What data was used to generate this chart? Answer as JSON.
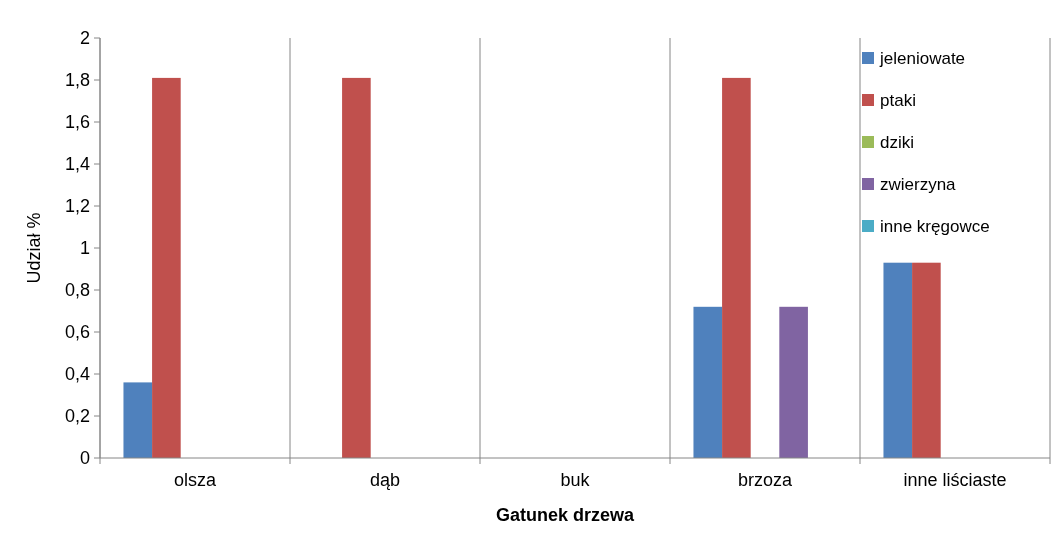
{
  "chart_data": {
    "type": "bar",
    "xlabel": "Gatunek drzewa",
    "ylabel": "Udział %",
    "categories": [
      "olsza",
      "dąb",
      "buk",
      "brzoza",
      "inne liściaste"
    ],
    "series": [
      {
        "name": "jeleniowate",
        "color": "#4f81bd",
        "values": [
          0.36,
          0,
          0,
          0.72,
          0.93
        ]
      },
      {
        "name": "ptaki",
        "color": "#c0504d",
        "values": [
          1.81,
          1.81,
          0,
          1.81,
          0.93
        ]
      },
      {
        "name": "dziki",
        "color": "#9bbb59",
        "values": [
          0,
          0,
          0,
          0,
          0
        ]
      },
      {
        "name": "zwierzyna",
        "color": "#8064a2",
        "values": [
          0,
          0,
          0,
          0.72,
          0
        ]
      },
      {
        "name": "inne kręgowce",
        "color": "#4bacc6",
        "values": [
          0,
          0,
          0,
          0,
          0
        ]
      }
    ],
    "ylim": [
      0,
      2
    ],
    "yticks": [
      0,
      {
        "value": 0.2,
        "label": "0,2"
      },
      {
        "value": 0.4,
        "label": "0,4"
      },
      {
        "value": 0.6,
        "label": "0,6"
      },
      {
        "value": 0.8,
        "label": "0,8"
      },
      1,
      {
        "value": 1.2,
        "label": "1,2"
      },
      {
        "value": 1.4,
        "label": "1,4"
      },
      {
        "value": 1.6,
        "label": "1,6"
      },
      {
        "value": 1.8,
        "label": "1,8"
      },
      2
    ],
    "grid": "x",
    "legend": "right"
  }
}
